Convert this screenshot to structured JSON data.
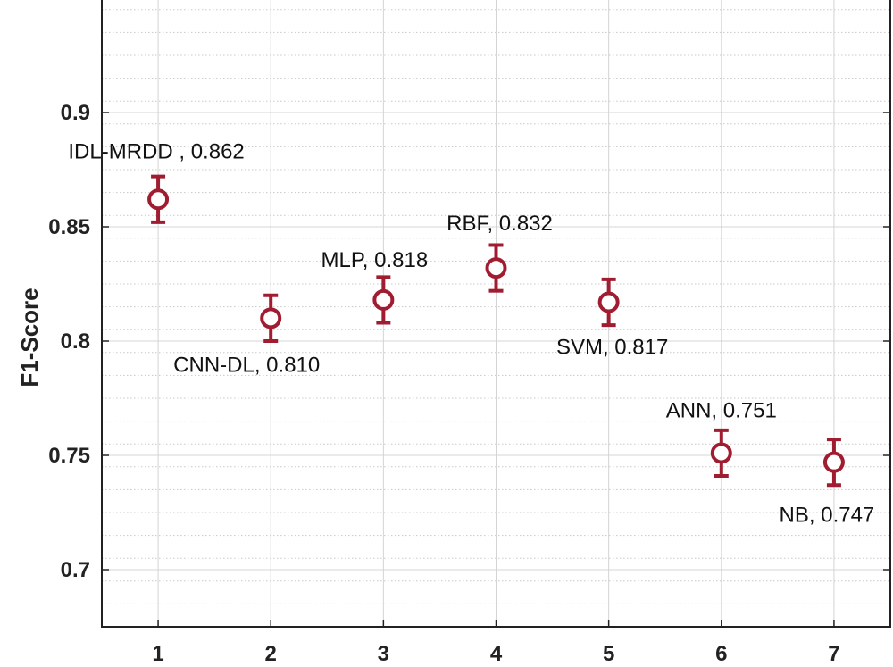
{
  "chart_data": {
    "type": "scatter",
    "title": "",
    "xlabel": "",
    "ylabel": "F1-Score",
    "xlim": [
      0.5,
      7.5
    ],
    "ylim": [
      0.675,
      0.95
    ],
    "x_ticks": [
      "1",
      "2",
      "3",
      "4",
      "5",
      "6",
      "7"
    ],
    "y_ticks": [
      "0.7",
      "0.75",
      "0.8",
      "0.85",
      "0.9"
    ],
    "grid": true,
    "marker_color": "#a01c30",
    "points": [
      {
        "x": 1,
        "y": 0.862,
        "err": 0.01,
        "label": "IDL-MRDD , 0.862"
      },
      {
        "x": 2,
        "y": 0.81,
        "err": 0.01,
        "label": "CNN-DL, 0.810"
      },
      {
        "x": 3,
        "y": 0.818,
        "err": 0.01,
        "label": "MLP, 0.818"
      },
      {
        "x": 4,
        "y": 0.832,
        "err": 0.01,
        "label": "RBF, 0.832"
      },
      {
        "x": 5,
        "y": 0.817,
        "err": 0.01,
        "label": "SVM, 0.817"
      },
      {
        "x": 6,
        "y": 0.751,
        "err": 0.01,
        "label": "ANN, 0.751"
      },
      {
        "x": 7,
        "y": 0.747,
        "err": 0.01,
        "label": "NB, 0.747"
      }
    ]
  }
}
